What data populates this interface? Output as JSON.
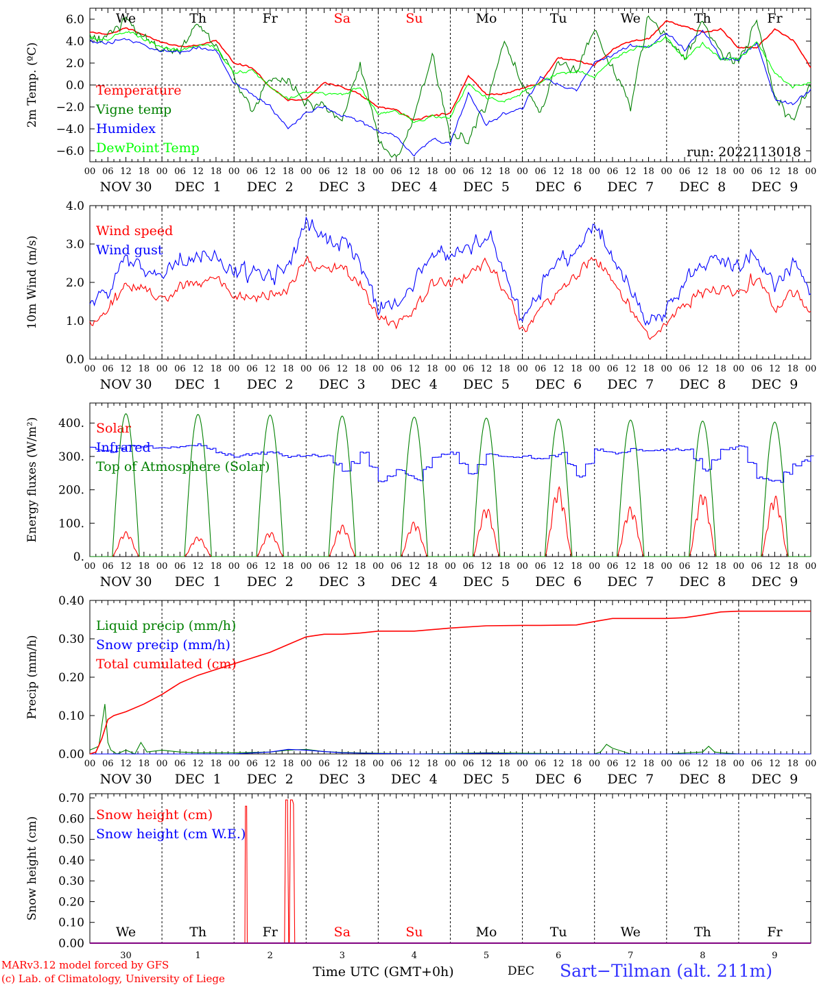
{
  "run_label": "run: 2022113018",
  "weekdays": [
    {
      "label": "We",
      "color": "#000000"
    },
    {
      "label": "Th",
      "color": "#000000"
    },
    {
      "label": "Fr",
      "color": "#000000"
    },
    {
      "label": "Sa",
      "color": "#ff0000"
    },
    {
      "label": "Su",
      "color": "#ff0000"
    },
    {
      "label": "Mo",
      "color": "#000000"
    },
    {
      "label": "Tu",
      "color": "#000000"
    },
    {
      "label": "We",
      "color": "#000000"
    },
    {
      "label": "Th",
      "color": "#000000"
    },
    {
      "label": "Fr",
      "color": "#000000"
    }
  ],
  "date_labels": [
    "NOV 30",
    "DEC  1",
    "DEC  2",
    "DEC  3",
    "DEC  4",
    "DEC  5",
    "DEC  6",
    "DEC  7",
    "DEC  8",
    "DEC  9"
  ],
  "bottom_day_numbers": [
    "30",
    "1",
    "2",
    "3",
    "4",
    "5",
    "6",
    "7",
    "8",
    "9"
  ],
  "bottom_month": "DEC",
  "hour_ticks": [
    "00",
    "06",
    "12",
    "18"
  ],
  "footer": {
    "model": "MARv3.12 model forced by GFS",
    "credit": "(c) Lab. of Climatology, University of Liege",
    "time_label": "Time UTC (GMT+0h)",
    "station": "Sart−Tilman (alt. 211m)"
  },
  "chart_data": [
    {
      "type": "line",
      "ylabel": "2m Temp. (ºC)",
      "ylim": [
        -7,
        7
      ],
      "yticks": [
        {
          "v": 6,
          "t": "6.0"
        },
        {
          "v": 4,
          "t": "4.0"
        },
        {
          "v": 2,
          "t": "2.0"
        },
        {
          "v": 0,
          "t": "0.0"
        },
        {
          "v": -2,
          "t": "−2.0"
        },
        {
          "v": -4,
          "t": "−4.0"
        },
        {
          "v": -6,
          "t": "−6.0"
        }
      ],
      "zero_line": true,
      "x_unit": "hours since Nov 30 00 UTC",
      "series": [
        {
          "name": "Temperature",
          "color": "#ff0000",
          "x": [
            0,
            6,
            12,
            18,
            24,
            30,
            36,
            42,
            48,
            54,
            60,
            66,
            72,
            78,
            84,
            90,
            96,
            102,
            108,
            114,
            120,
            126,
            132,
            138,
            144,
            150,
            156,
            162,
            168,
            174,
            180,
            186,
            192,
            198,
            204,
            210,
            216,
            222,
            228,
            234,
            240
          ],
          "y": [
            4.8,
            4.6,
            5.2,
            4.6,
            3.9,
            3.5,
            3.6,
            4.1,
            2.0,
            1.6,
            -0.2,
            -1.4,
            -1.3,
            0.2,
            -0.2,
            -0.9,
            -2.0,
            -2.3,
            -3.2,
            -2.8,
            -2.6,
            0.9,
            -0.9,
            -0.8,
            -0.3,
            0.2,
            2.5,
            2.2,
            1.8,
            3.2,
            4.0,
            4.2,
            5.9,
            5.3,
            4.8,
            5.1,
            3.4,
            3.4,
            5.1,
            4.1,
            1.6
          ]
        },
        {
          "name": "Vigne temp",
          "color": "#008000",
          "x": [
            0,
            6,
            12,
            18,
            24,
            30,
            36,
            42,
            48,
            54,
            60,
            66,
            72,
            78,
            84,
            90,
            96,
            102,
            108,
            114,
            120,
            126,
            132,
            138,
            144,
            150,
            156,
            162,
            168,
            174,
            180,
            186,
            192,
            198,
            204,
            210,
            216,
            222,
            228,
            234,
            240
          ],
          "y": [
            4.3,
            4.2,
            6.0,
            4.3,
            3.4,
            3.2,
            5.8,
            3.6,
            1.0,
            -2.5,
            0.5,
            0.3,
            -1.6,
            -2.0,
            -3.2,
            1.8,
            -5.0,
            -6.7,
            -3.0,
            2.7,
            -4.8,
            -4.9,
            -1.8,
            4.3,
            -0.2,
            -2.5,
            2.4,
            1.1,
            5.1,
            1.6,
            -2.0,
            6.4,
            4.1,
            2.5,
            5.8,
            2.9,
            2.2,
            5.7,
            -1.2,
            -3.2,
            0.1
          ]
        },
        {
          "name": "Humidex",
          "color": "#0000ff",
          "x": [
            0,
            6,
            12,
            18,
            24,
            30,
            36,
            42,
            48,
            54,
            60,
            66,
            72,
            78,
            84,
            90,
            96,
            102,
            108,
            114,
            120,
            126,
            132,
            138,
            144,
            150,
            156,
            162,
            168,
            174,
            180,
            186,
            192,
            198,
            204,
            210,
            216,
            222,
            228,
            234,
            240
          ],
          "y": [
            4.0,
            3.8,
            4.2,
            3.7,
            3.1,
            3.0,
            3.4,
            3.2,
            0.2,
            -0.8,
            -2.0,
            -3.9,
            -2.6,
            -1.9,
            -2.8,
            -3.3,
            -4.2,
            -4.7,
            -6.4,
            -5.0,
            -5.3,
            -0.8,
            -3.6,
            -2.6,
            -2.1,
            0.8,
            0.0,
            -0.5,
            2.1,
            2.7,
            3.6,
            3.5,
            4.8,
            3.2,
            5.1,
            2.4,
            2.3,
            3.9,
            -1.2,
            -1.8,
            -0.4
          ]
        },
        {
          "name": "DewPoint Temp",
          "color": "#00ff00",
          "x": [
            0,
            6,
            12,
            18,
            24,
            30,
            36,
            42,
            48,
            54,
            60,
            66,
            72,
            78,
            84,
            90,
            96,
            102,
            108,
            114,
            120,
            126,
            132,
            138,
            144,
            150,
            156,
            162,
            168,
            174,
            180,
            186,
            192,
            198,
            204,
            210,
            216,
            222,
            228,
            234,
            240
          ],
          "y": [
            4.3,
            4.2,
            4.9,
            4.2,
            3.5,
            3.2,
            3.6,
            3.4,
            1.2,
            1.3,
            -0.2,
            -1.3,
            -0.6,
            -0.8,
            -0.9,
            -0.2,
            -2.7,
            -2.3,
            -3.4,
            -2.9,
            -2.9,
            0.1,
            -1.2,
            -1.4,
            -0.7,
            0.3,
            1.0,
            1.3,
            0.8,
            2.4,
            3.3,
            3.5,
            4.3,
            2.4,
            3.8,
            2.4,
            2.4,
            3.9,
            1.1,
            -0.2,
            0.3
          ]
        }
      ]
    },
    {
      "type": "line",
      "ylabel": "10m Wind (m/s)",
      "ylim": [
        0,
        4
      ],
      "yticks": [
        {
          "v": 4,
          "t": "4.0"
        },
        {
          "v": 3,
          "t": "3.0"
        },
        {
          "v": 2,
          "t": "2.0"
        },
        {
          "v": 1,
          "t": "1.0"
        },
        {
          "v": 0,
          "t": "0.0"
        }
      ],
      "series": [
        {
          "name": "Wind speed",
          "color": "#ff0000",
          "x": [
            0,
            6,
            12,
            18,
            24,
            30,
            36,
            42,
            48,
            54,
            60,
            66,
            72,
            78,
            84,
            90,
            96,
            102,
            108,
            114,
            120,
            126,
            132,
            138,
            144,
            150,
            156,
            162,
            168,
            174,
            180,
            186,
            192,
            198,
            204,
            210,
            216,
            222,
            228,
            234,
            240
          ],
          "y": [
            0.9,
            1.3,
            1.9,
            1.8,
            1.5,
            1.9,
            2.0,
            2.2,
            1.6,
            1.6,
            1.6,
            1.8,
            2.6,
            2.3,
            2.4,
            2.0,
            1.1,
            0.9,
            1.3,
            2.0,
            2.0,
            2.2,
            2.6,
            1.8,
            0.7,
            1.3,
            1.8,
            2.2,
            2.6,
            2.0,
            1.3,
            0.6,
            0.9,
            1.4,
            1.7,
            1.8,
            1.7,
            2.2,
            1.3,
            1.8,
            1.2
          ]
        },
        {
          "name": "Wind gust",
          "color": "#0000ff",
          "x": [
            0,
            6,
            12,
            18,
            24,
            30,
            36,
            42,
            48,
            54,
            60,
            66,
            72,
            78,
            84,
            90,
            96,
            102,
            108,
            114,
            120,
            126,
            132,
            138,
            144,
            150,
            156,
            162,
            168,
            174,
            180,
            186,
            192,
            198,
            204,
            210,
            216,
            222,
            228,
            234,
            240
          ],
          "y": [
            1.3,
            1.8,
            2.6,
            2.4,
            2.0,
            2.6,
            2.7,
            2.8,
            2.2,
            2.3,
            2.1,
            2.4,
            3.6,
            3.1,
            3.0,
            2.6,
            1.3,
            1.4,
            2.0,
            2.8,
            2.7,
            2.9,
            3.3,
            2.4,
            1.0,
            1.8,
            2.5,
            2.9,
            3.5,
            2.7,
            1.8,
            0.9,
            1.3,
            2.1,
            2.5,
            2.6,
            2.4,
            2.8,
            1.8,
            2.5,
            1.6
          ]
        }
      ]
    },
    {
      "type": "line",
      "ylabel": "Energy fluxes (W/m²)",
      "ylim": [
        0,
        460
      ],
      "yticks": [
        {
          "v": 400,
          "t": "400."
        },
        {
          "v": 300,
          "t": "300."
        },
        {
          "v": 200,
          "t": "200."
        },
        {
          "v": 100,
          "t": "100."
        },
        {
          "v": 0,
          "t": "0."
        }
      ],
      "series": [
        {
          "name": "Solar",
          "color": "#ff0000",
          "kind": "daily_peaks",
          "peaks": [
            75,
            60,
            75,
            95,
            105,
            150,
            210,
            150,
            195,
            185
          ]
        },
        {
          "name": "Infrared",
          "color": "#0000ff",
          "x": [
            0,
            6,
            12,
            18,
            24,
            30,
            36,
            42,
            48,
            54,
            60,
            66,
            72,
            78,
            84,
            90,
            96,
            102,
            108,
            114,
            120,
            126,
            132,
            138,
            144,
            150,
            156,
            162,
            168,
            174,
            180,
            186,
            192,
            198,
            204,
            210,
            216,
            222,
            228,
            234,
            240
          ],
          "y": [
            325,
            315,
            335,
            330,
            325,
            330,
            335,
            310,
            300,
            310,
            310,
            300,
            305,
            300,
            255,
            310,
            225,
            260,
            230,
            300,
            310,
            250,
            305,
            300,
            300,
            290,
            310,
            240,
            320,
            310,
            320,
            315,
            320,
            320,
            260,
            320,
            330,
            235,
            225,
            275,
            300
          ]
        },
        {
          "name": "Top of Atmosphere (Solar)",
          "color": "#008000",
          "kind": "daily_peaks",
          "peaks": [
            428,
            426,
            424,
            421,
            418,
            415,
            412,
            409,
            406,
            403
          ]
        }
      ]
    },
    {
      "type": "line",
      "ylabel": "Precip (mm/h)",
      "ylim": [
        0,
        0.4
      ],
      "yticks": [
        {
          "v": 0.4,
          "t": "0.40"
        },
        {
          "v": 0.3,
          "t": "0.30"
        },
        {
          "v": 0.2,
          "t": "0.20"
        },
        {
          "v": 0.1,
          "t": "0.10"
        },
        {
          "v": 0,
          "t": "0.00"
        }
      ],
      "series": [
        {
          "name": "Liquid precip (mm/h)",
          "color": "#008000",
          "x": [
            0,
            3,
            5,
            6,
            7,
            9,
            12,
            15,
            17,
            19,
            24,
            30,
            36,
            48,
            60,
            66,
            72,
            78,
            84,
            96,
            108,
            132,
            144,
            168,
            170,
            172,
            174,
            180,
            192,
            204,
            206,
            208,
            210,
            216,
            228,
            240
          ],
          "y": [
            0.01,
            0.02,
            0.13,
            0.03,
            0.01,
            0.0,
            0.01,
            0.0,
            0.03,
            0.005,
            0.01,
            0.005,
            0.003,
            0.003,
            0.005,
            0.01,
            0.012,
            0.006,
            0.004,
            0.002,
            0.0,
            0.003,
            0.002,
            0.0,
            0.005,
            0.025,
            0.015,
            0.0,
            0.0,
            0.005,
            0.02,
            0.005,
            0.003,
            0.0,
            0.0,
            0.0
          ]
        },
        {
          "name": "Snow precip (mm/h)",
          "color": "#0000ff",
          "x": [
            0,
            48,
            60,
            66,
            72,
            78,
            84,
            96,
            108,
            120,
            132,
            144,
            240
          ],
          "y": [
            0.0,
            0.0,
            0.005,
            0.012,
            0.01,
            0.006,
            0.003,
            0.001,
            0.0,
            0.0,
            0.002,
            0.0,
            0.0
          ]
        },
        {
          "name": "Total cumulated (cm)",
          "color": "#ff0000",
          "x": [
            0,
            2,
            4,
            6,
            8,
            12,
            18,
            24,
            30,
            36,
            42,
            48,
            54,
            60,
            66,
            72,
            78,
            84,
            90,
            96,
            108,
            120,
            132,
            144,
            150,
            162,
            168,
            174,
            180,
            192,
            198,
            204,
            210,
            216,
            228,
            240
          ],
          "y": [
            0.0,
            0.005,
            0.04,
            0.09,
            0.1,
            0.11,
            0.13,
            0.155,
            0.185,
            0.205,
            0.22,
            0.235,
            0.25,
            0.265,
            0.285,
            0.305,
            0.312,
            0.312,
            0.315,
            0.32,
            0.32,
            0.328,
            0.334,
            0.335,
            0.335,
            0.336,
            0.345,
            0.353,
            0.353,
            0.353,
            0.355,
            0.362,
            0.37,
            0.372,
            0.372,
            0.372
          ]
        }
      ]
    },
    {
      "type": "line",
      "ylabel": "Snow height (cm)",
      "ylim": [
        0,
        0.72
      ],
      "yticks": [
        {
          "v": 0.7,
          "t": "0.70"
        },
        {
          "v": 0.6,
          "t": "0.60"
        },
        {
          "v": 0.5,
          "t": "0.50"
        },
        {
          "v": 0.4,
          "t": "0.40"
        },
        {
          "v": 0.3,
          "t": "0.30"
        },
        {
          "v": 0.2,
          "t": "0.20"
        },
        {
          "v": 0.1,
          "t": "0.10"
        },
        {
          "v": 0,
          "t": "0.00"
        }
      ],
      "series": [
        {
          "name": "Snow height (cm)",
          "color": "#ff0000",
          "x": [
            0,
            51.6,
            51.8,
            52.2,
            52.4,
            64.8,
            65.2,
            65.8,
            66.2,
            66.4,
            66.8,
            67.4,
            67.8,
            68.2,
            68.6,
            240
          ],
          "y": [
            0,
            0,
            0.66,
            0.66,
            0,
            0,
            0.69,
            0.69,
            0,
            0,
            0.69,
            0.69,
            0.67,
            0,
            0,
            0
          ]
        },
        {
          "name": "Snow height (cm W.E.)",
          "color": "#0000ff",
          "x": [
            0,
            240
          ],
          "y": [
            0,
            0
          ]
        }
      ]
    }
  ]
}
